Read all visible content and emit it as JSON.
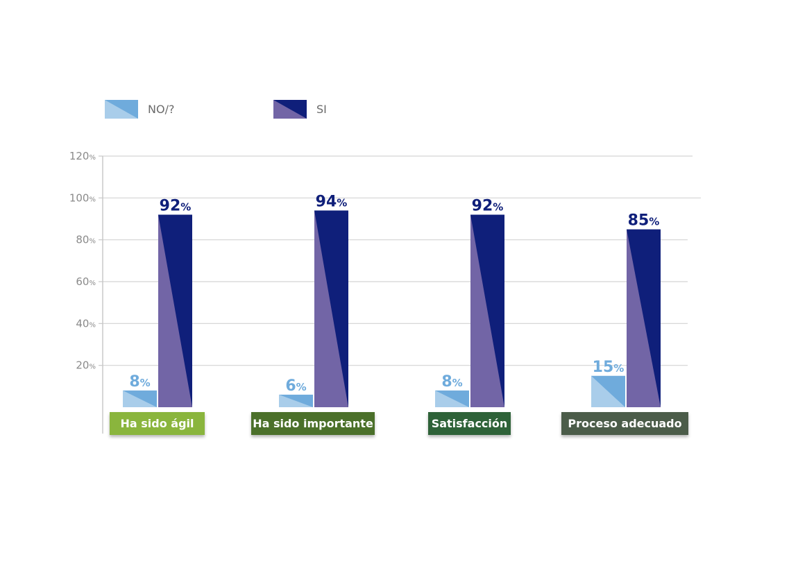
{
  "chart_data": {
    "type": "bar",
    "categories": [
      "Ha sido ágil",
      "Ha sido importante",
      "Satisfacción",
      "Proceso adecuado"
    ],
    "category_colors": [
      "#8ab53e",
      "#4c6f2c",
      "#2e6237",
      "#4b5b48"
    ],
    "series": [
      {
        "name": "NO/?",
        "values": [
          8,
          6,
          8,
          15
        ],
        "labels": [
          "8",
          "6",
          "8",
          "15"
        ],
        "colors": {
          "light": "#a9cdea",
          "dark": "#6fabdc",
          "label": "#6fabdc"
        }
      },
      {
        "name": "SI",
        "values": [
          92,
          94,
          92,
          85
        ],
        "labels": [
          "92",
          "94",
          "92",
          "85"
        ],
        "colors": {
          "light": "#7265a6",
          "dark": "#0f1f7a",
          "label": "#0f1f7a"
        }
      }
    ],
    "value_suffix": "%",
    "ylim": [
      0,
      120
    ],
    "yticks": [
      {
        "value": 20,
        "label": "20"
      },
      {
        "value": 40,
        "label": "40"
      },
      {
        "value": 60,
        "label": "60"
      },
      {
        "value": 80,
        "label": "80"
      },
      {
        "value": 100,
        "label": "100"
      },
      {
        "value": 120,
        "label": "120"
      }
    ],
    "ytick_suffix": "%",
    "grid": true,
    "legend_position": "top-left"
  }
}
